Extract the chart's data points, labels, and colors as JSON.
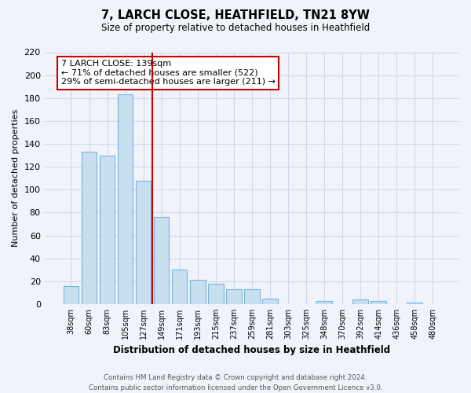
{
  "title": "7, LARCH CLOSE, HEATHFIELD, TN21 8YW",
  "subtitle": "Size of property relative to detached houses in Heathfield",
  "xlabel": "Distribution of detached houses by size in Heathfield",
  "ylabel": "Number of detached properties",
  "bar_labels": [
    "38sqm",
    "60sqm",
    "83sqm",
    "105sqm",
    "127sqm",
    "149sqm",
    "171sqm",
    "193sqm",
    "215sqm",
    "237sqm",
    "259sqm",
    "281sqm",
    "303sqm",
    "325sqm",
    "348sqm",
    "370sqm",
    "392sqm",
    "414sqm",
    "436sqm",
    "458sqm",
    "480sqm"
  ],
  "bar_values": [
    16,
    133,
    130,
    183,
    108,
    76,
    30,
    21,
    18,
    13,
    13,
    5,
    0,
    0,
    3,
    0,
    4,
    3,
    0,
    1,
    0
  ],
  "bar_color": "#c8dff0",
  "bar_edge_color": "#7ab4d4",
  "vline_color": "#cc0000",
  "ylim": [
    0,
    220
  ],
  "yticks": [
    0,
    20,
    40,
    60,
    80,
    100,
    120,
    140,
    160,
    180,
    200,
    220
  ],
  "annotation_line1": "7 LARCH CLOSE: 139sqm",
  "annotation_line2": "← 71% of detached houses are smaller (522)",
  "annotation_line3": "29% of semi-detached houses are larger (211) →",
  "annotation_box_facecolor": "#ffffff",
  "annotation_box_edgecolor": "#cc0000",
  "footnote": "Contains HM Land Registry data © Crown copyright and database right 2024.\nContains public sector information licensed under the Open Government Licence v3.0.",
  "grid_color": "#cdd8ea",
  "background_color": "#f0f4fa"
}
